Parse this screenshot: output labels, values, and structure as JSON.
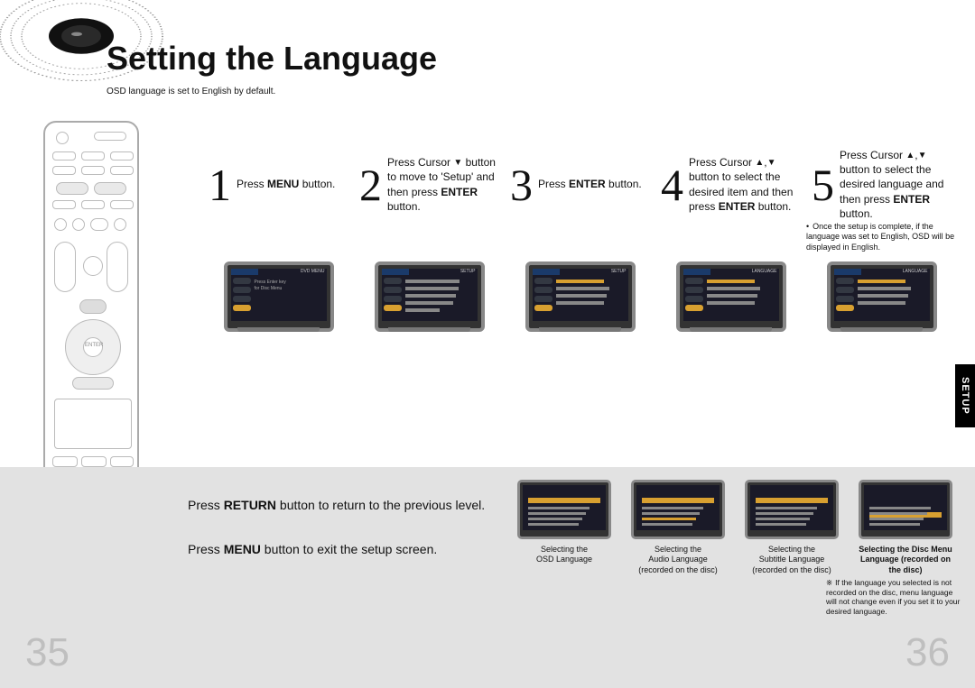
{
  "title": "Setting the Language",
  "subtitle": "OSD language is set to English by default.",
  "side_tab": "SETUP",
  "page_left": "35",
  "page_right": "36",
  "steps": [
    {
      "num": "1",
      "html": "Press <b>MENU</b> button."
    },
    {
      "num": "2",
      "html": "Press Cursor <span class='tri'>▼</span> button to move to 'Setup' and then press <b>ENTER</b> button."
    },
    {
      "num": "3",
      "html": "Press <b>ENTER</b> button."
    },
    {
      "num": "4",
      "html": "Press Cursor <span class='tri'>▲</span>,<span class='tri'>▼</span> button to select the desired item and then press <b>ENTER</b> button."
    },
    {
      "num": "5",
      "html": "Press Cursor <span class='tri'>▲</span>,<span class='tri'>▼</span> button to select the desired language and then press <b>ENTER</b> button."
    }
  ],
  "note5": "Once the setup is complete, if the language was set to English, OSD will be displayed in English.",
  "preview_headers": [
    "DVD  MENU",
    "SETUP",
    "SETUP",
    "LANGUAGE",
    "LANGUAGE"
  ],
  "bottom_left": {
    "l1_html": "Press <b>RETURN</b> button to return to the previous level.",
    "l2_html": "Press <b>MENU</b> button to exit the setup screen."
  },
  "bottom_previews": [
    {
      "caption": "Selecting the<br>OSD Language",
      "bold": false
    },
    {
      "caption": "Selecting the<br>Audio Language<br>(recorded on the disc)",
      "bold": false
    },
    {
      "caption": "Selecting the<br>Subtitle Language<br>(recorded on the disc)",
      "bold": false
    },
    {
      "caption": "Selecting the Disc Menu<br>Language (recorded on the disc)",
      "bold": true
    }
  ],
  "footnote": "If the language you selected is not recorded on the disc, menu language will not change even if you set it to your desired language.",
  "colors": {
    "grey_band": "#e2e2e2",
    "page_num": "#bfbfbf",
    "accent": "#d8a030"
  }
}
